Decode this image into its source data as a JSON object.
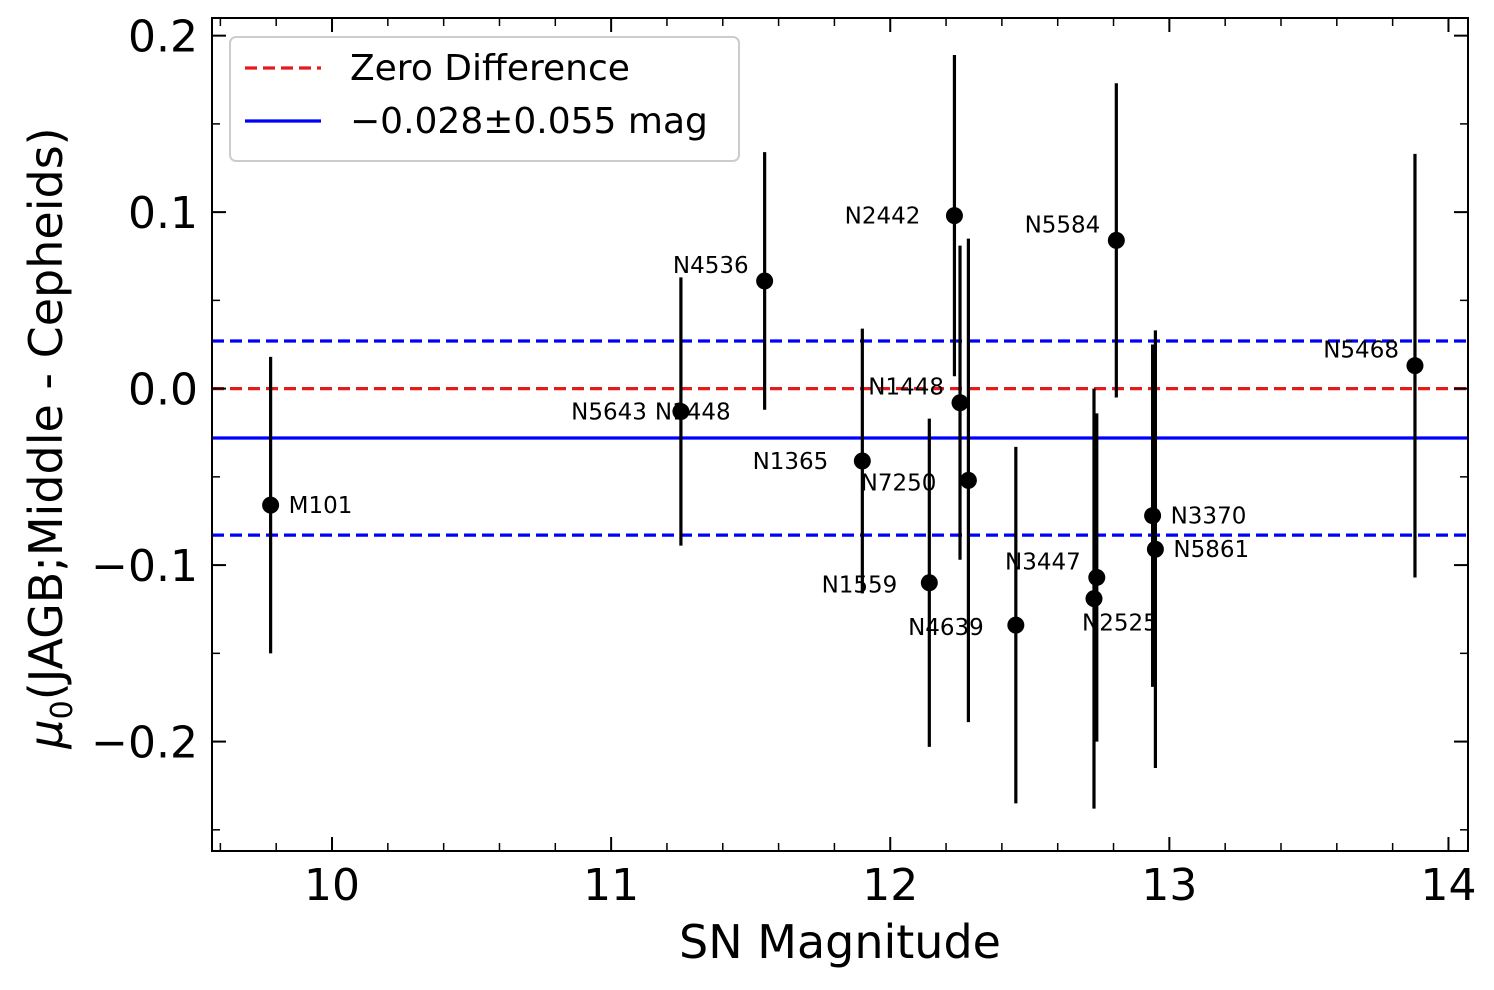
{
  "chart_data": {
    "type": "scatter",
    "title": "",
    "xlabel": "SN Magnitude",
    "ylabel": "μ₀(JAGB;Middle - Cepheids)",
    "ylabel_main": "μ",
    "ylabel_sub": "0",
    "ylabel_rest": "(JAGB;Middle - Cepheids)",
    "xlim": [
      9.57,
      14.07
    ],
    "ylim": [
      -0.262,
      0.21
    ],
    "xticks": [
      10,
      11,
      12,
      13,
      14
    ],
    "yticks": [
      0.2,
      0.1,
      0.0,
      -0.1,
      -0.2
    ],
    "xtick_labels": [
      "10",
      "11",
      "12",
      "13",
      "14"
    ],
    "ytick_labels": [
      "0.2",
      "0.1",
      "0.0",
      "−0.1",
      "−0.2"
    ],
    "grid": false,
    "legend_position": "top-left",
    "reference_lines": [
      {
        "name": "Zero Difference",
        "y": 0.0,
        "color": "#e41a1c",
        "style": "dashed"
      },
      {
        "name": "−0.028±0.055 mag",
        "y": -0.028,
        "color": "#0000ff",
        "style": "solid"
      },
      {
        "name": "upper bound",
        "y": 0.027,
        "color": "#0000ff",
        "style": "dashed"
      },
      {
        "name": "lower bound",
        "y": -0.083,
        "color": "#0000ff",
        "style": "dashed"
      }
    ],
    "legend": [
      {
        "label": "Zero Difference",
        "color": "#e41a1c",
        "style": "dashed"
      },
      {
        "label": "−0.028±0.055 mag",
        "color": "#0000ff",
        "style": "solid"
      }
    ],
    "points": [
      {
        "label": "M101",
        "x": 9.78,
        "y": -0.066,
        "err": 0.084,
        "label_side": "right"
      },
      {
        "label": "N5643",
        "x": 11.25,
        "y": -0.013,
        "err": 0.076,
        "label_side": "left"
      },
      {
        "label": "N4536",
        "x": 11.55,
        "y": 0.061,
        "err": 0.073,
        "label_side": "upleft"
      },
      {
        "label": "N1448",
        "x": 11.55,
        "y": -0.013,
        "err": 0.0,
        "label_side": "left",
        "no_marker": true
      },
      {
        "label": "N1365",
        "x": 11.9,
        "y": -0.041,
        "err": 0.075,
        "label_side": "left"
      },
      {
        "label": "N1559",
        "x": 12.14,
        "y": -0.11,
        "err": 0.093,
        "label_side": "downleft"
      },
      {
        "label": "N2442",
        "x": 12.23,
        "y": 0.098,
        "err": 0.091,
        "label_side": "left"
      },
      {
        "label": "N1448",
        "x": 12.25,
        "y": -0.008,
        "err": 0.089,
        "label_side": "upleft"
      },
      {
        "label": "N7250",
        "x": 12.28,
        "y": -0.052,
        "err": 0.137,
        "label_side": "downleft"
      },
      {
        "label": "N4639",
        "x": 12.45,
        "y": -0.134,
        "err": 0.101,
        "label_side": "downleft"
      },
      {
        "label": "N3447",
        "x": 12.74,
        "y": -0.107,
        "err": 0.093,
        "label_side": "upleft"
      },
      {
        "label": "N2525",
        "x": 12.73,
        "y": -0.119,
        "err": 0.119,
        "label_side": "downright"
      },
      {
        "label": "N5584",
        "x": 12.81,
        "y": 0.084,
        "err": 0.089,
        "label_side": "upleft"
      },
      {
        "label": "N3370",
        "x": 12.94,
        "y": -0.072,
        "err": 0.097,
        "label_side": "right"
      },
      {
        "label": "N5861",
        "x": 12.95,
        "y": -0.091,
        "err": 0.124,
        "label_side": "right"
      },
      {
        "label": "N5468",
        "x": 13.88,
        "y": 0.013,
        "err": 0.12,
        "label_side": "upleft"
      }
    ]
  }
}
